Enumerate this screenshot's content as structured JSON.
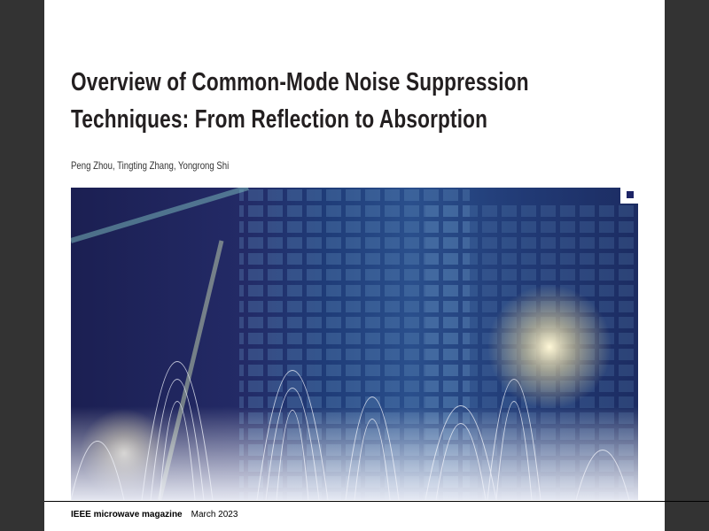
{
  "article": {
    "title_line1": "Overview of Common-Mode Noise Suppression",
    "title_line2": "Techniques: From Reflection to Absorption",
    "authors": "Peng Zhou, Tingting Zhang, Yongrong Shi"
  },
  "footer": {
    "magazine": "IEEE microwave magazine",
    "date": "March 2023"
  },
  "colors": {
    "page_background": "#ffffff",
    "side_margin": "#333333",
    "hero_navy": "#1d2466"
  }
}
